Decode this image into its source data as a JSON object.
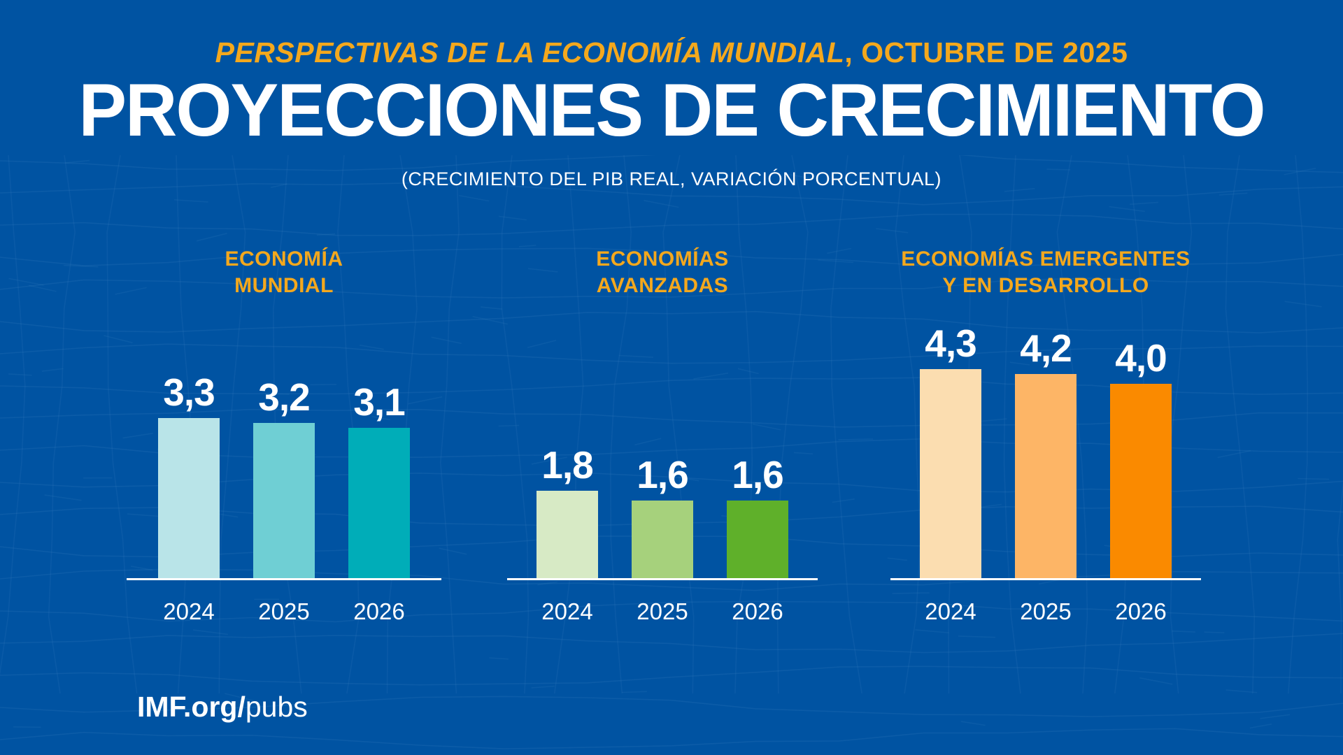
{
  "header": {
    "kicker_italic": "PERSPECTIVAS DE LA ECONOMÍA MUNDIAL",
    "kicker_rest": ", OCTUBRE DE 2025",
    "title": "PROYECCIONES DE CRECIMIENTO",
    "subtitle": "(CRECIMIENTO DEL PIB REAL, VARIACIÓN PORCENTUAL)"
  },
  "footer": {
    "site_bold": "IMF.org/",
    "site_light": "pubs"
  },
  "colors": {
    "background": "#0053A2",
    "accent_gold": "#F4A81D",
    "text_white": "#FFFFFF",
    "pattern_line": "#4A8CC9"
  },
  "chart_data": {
    "type": "bar",
    "title": "Proyecciones de crecimiento",
    "subtitle": "Crecimiento del PIB real, variación porcentual",
    "categories": [
      "2024",
      "2025",
      "2026"
    ],
    "ylim": [
      0,
      5
    ],
    "grid": false,
    "legend": "none",
    "value_labels": "above-bars, comma decimal separator",
    "groups": [
      {
        "label_lines": [
          "ECONOMÍA",
          "MUNDIAL"
        ],
        "values": [
          3.3,
          3.2,
          3.1
        ],
        "display_values": [
          "3,3",
          "3,2",
          "3,1"
        ],
        "bar_colors": [
          "#B9E4E8",
          "#6FCFD4",
          "#00ADB8"
        ]
      },
      {
        "label_lines": [
          "ECONOMÍAS",
          "AVANZADAS"
        ],
        "values": [
          1.8,
          1.6,
          1.6
        ],
        "display_values": [
          "1,8",
          "1,6",
          "1,6"
        ],
        "bar_colors": [
          "#D7EAC5",
          "#A6D17C",
          "#5FB02A"
        ]
      },
      {
        "label_lines": [
          "ECONOMÍAS EMERGENTES",
          "Y EN DESARROLLO"
        ],
        "values": [
          4.3,
          4.2,
          4.0
        ],
        "display_values": [
          "4,3",
          "4,2",
          "4,0"
        ],
        "bar_colors": [
          "#FBDDB0",
          "#FDB566",
          "#FA8A00"
        ]
      }
    ]
  }
}
